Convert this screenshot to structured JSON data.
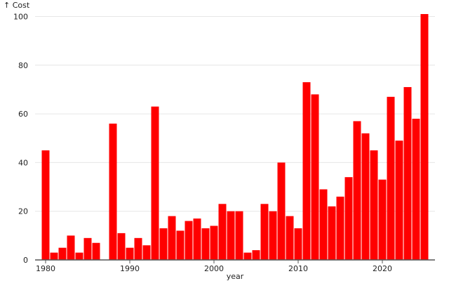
{
  "chart_data": {
    "type": "bar",
    "title": "",
    "xlabel": "year",
    "ylabel": "↑ Cost",
    "ylim": [
      0,
      101
    ],
    "xlim": [
      1978.75,
      2026.25
    ],
    "grid": "horizontal",
    "bar_color": "#ff0000",
    "yticks": [
      0,
      20,
      40,
      60,
      80,
      100
    ],
    "xticks": [
      1980,
      1990,
      2000,
      2010,
      2020
    ],
    "x": [
      1980,
      1981,
      1982,
      1983,
      1984,
      1985,
      1986,
      1987,
      1988,
      1989,
      1990,
      1991,
      1992,
      1993,
      1994,
      1995,
      1996,
      1997,
      1998,
      1999,
      2000,
      2001,
      2002,
      2003,
      2004,
      2005,
      2006,
      2007,
      2008,
      2009,
      2010,
      2011,
      2012,
      2013,
      2014,
      2015,
      2016,
      2017,
      2018,
      2019,
      2020,
      2021,
      2022,
      2023,
      2024,
      2025
    ],
    "values": [
      45,
      3,
      5,
      10,
      3,
      9,
      7,
      0,
      56,
      11,
      5,
      9,
      6,
      63,
      13,
      18,
      12,
      16,
      17,
      13,
      14,
      23,
      20,
      20,
      3,
      4,
      23,
      20,
      40,
      18,
      13,
      73,
      68,
      29,
      22,
      26,
      34,
      57,
      52,
      45,
      33,
      67,
      49,
      71,
      58,
      101
    ]
  }
}
